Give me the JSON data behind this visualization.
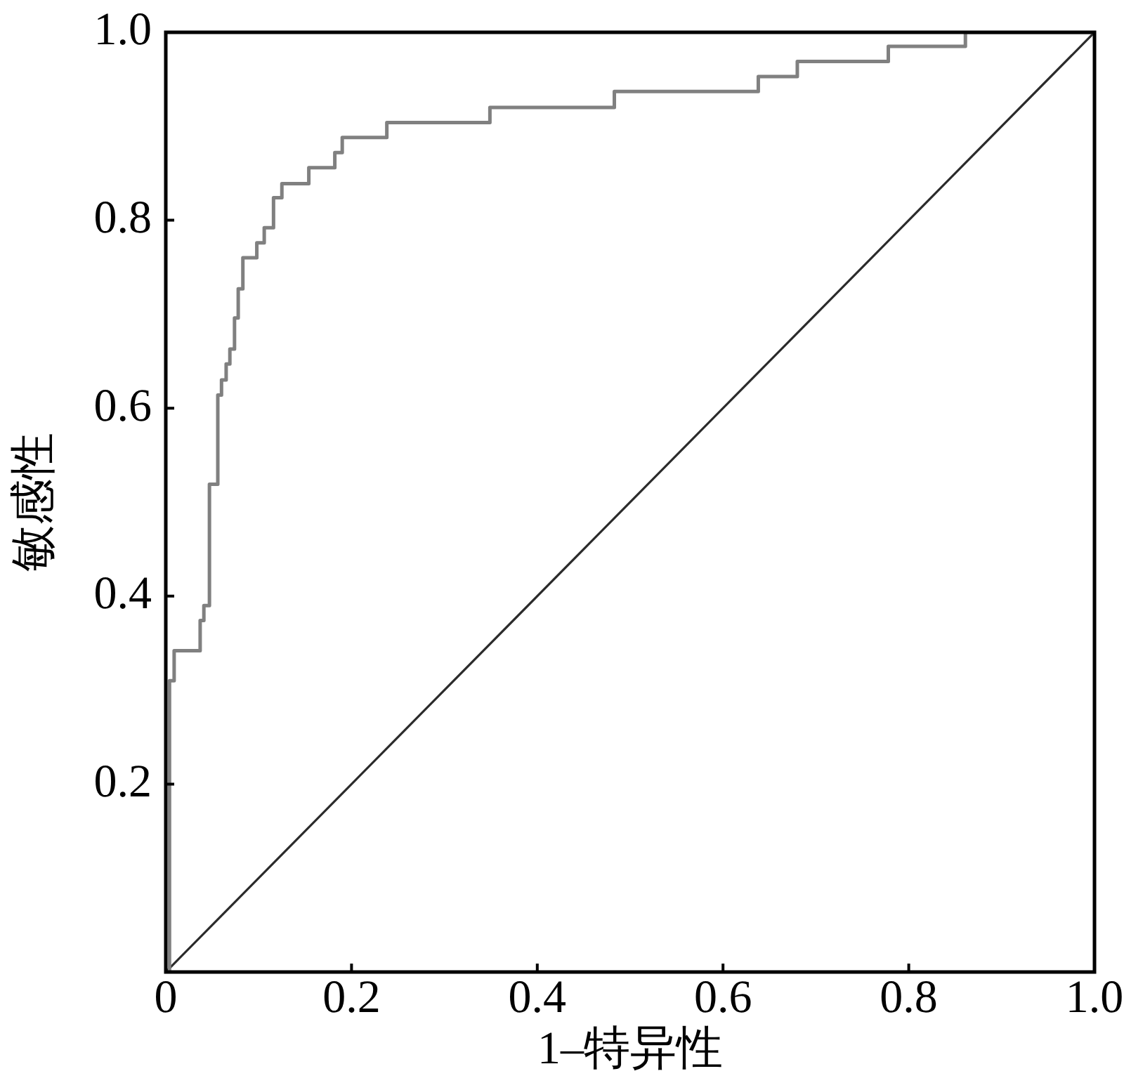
{
  "chart_data": {
    "type": "step",
    "xlabel": "1–特异性",
    "ylabel": "敏感性",
    "xlim": [
      0,
      1
    ],
    "ylim": [
      0,
      1
    ],
    "xticks": [
      0,
      0.2,
      0.4,
      0.6,
      0.8,
      {
        "value": 1,
        "label": "1.0"
      }
    ],
    "yticks": [
      0.2,
      0.4,
      0.6,
      0.8,
      {
        "value": 1,
        "label": "1.0"
      }
    ],
    "series": [
      {
        "color": "#808080",
        "x": [
          0,
          0.004,
          0.009,
          0.037,
          0.041,
          0.047,
          0.056,
          0.06,
          0.065,
          0.069,
          0.074,
          0.078,
          0.083,
          0.098,
          0.106,
          0.116,
          0.125,
          0.154,
          0.182,
          0.19,
          0.238,
          0.349,
          0.483,
          0.638,
          0.68,
          0.778,
          0.861,
          1
        ],
        "values": [
          0,
          0.31,
          0.342,
          0.374,
          0.39,
          0.519,
          0.614,
          0.63,
          0.647,
          0.663,
          0.696,
          0.727,
          0.76,
          0.776,
          0.792,
          0.824,
          0.839,
          0.856,
          0.872,
          0.888,
          0.904,
          0.92,
          0.937,
          0.953,
          0.969,
          0.985,
          1,
          1
        ]
      },
      {
        "type": "line",
        "color": "#2b2b2b",
        "x": [
          0,
          1
        ],
        "values": [
          0,
          1
        ]
      }
    ]
  }
}
